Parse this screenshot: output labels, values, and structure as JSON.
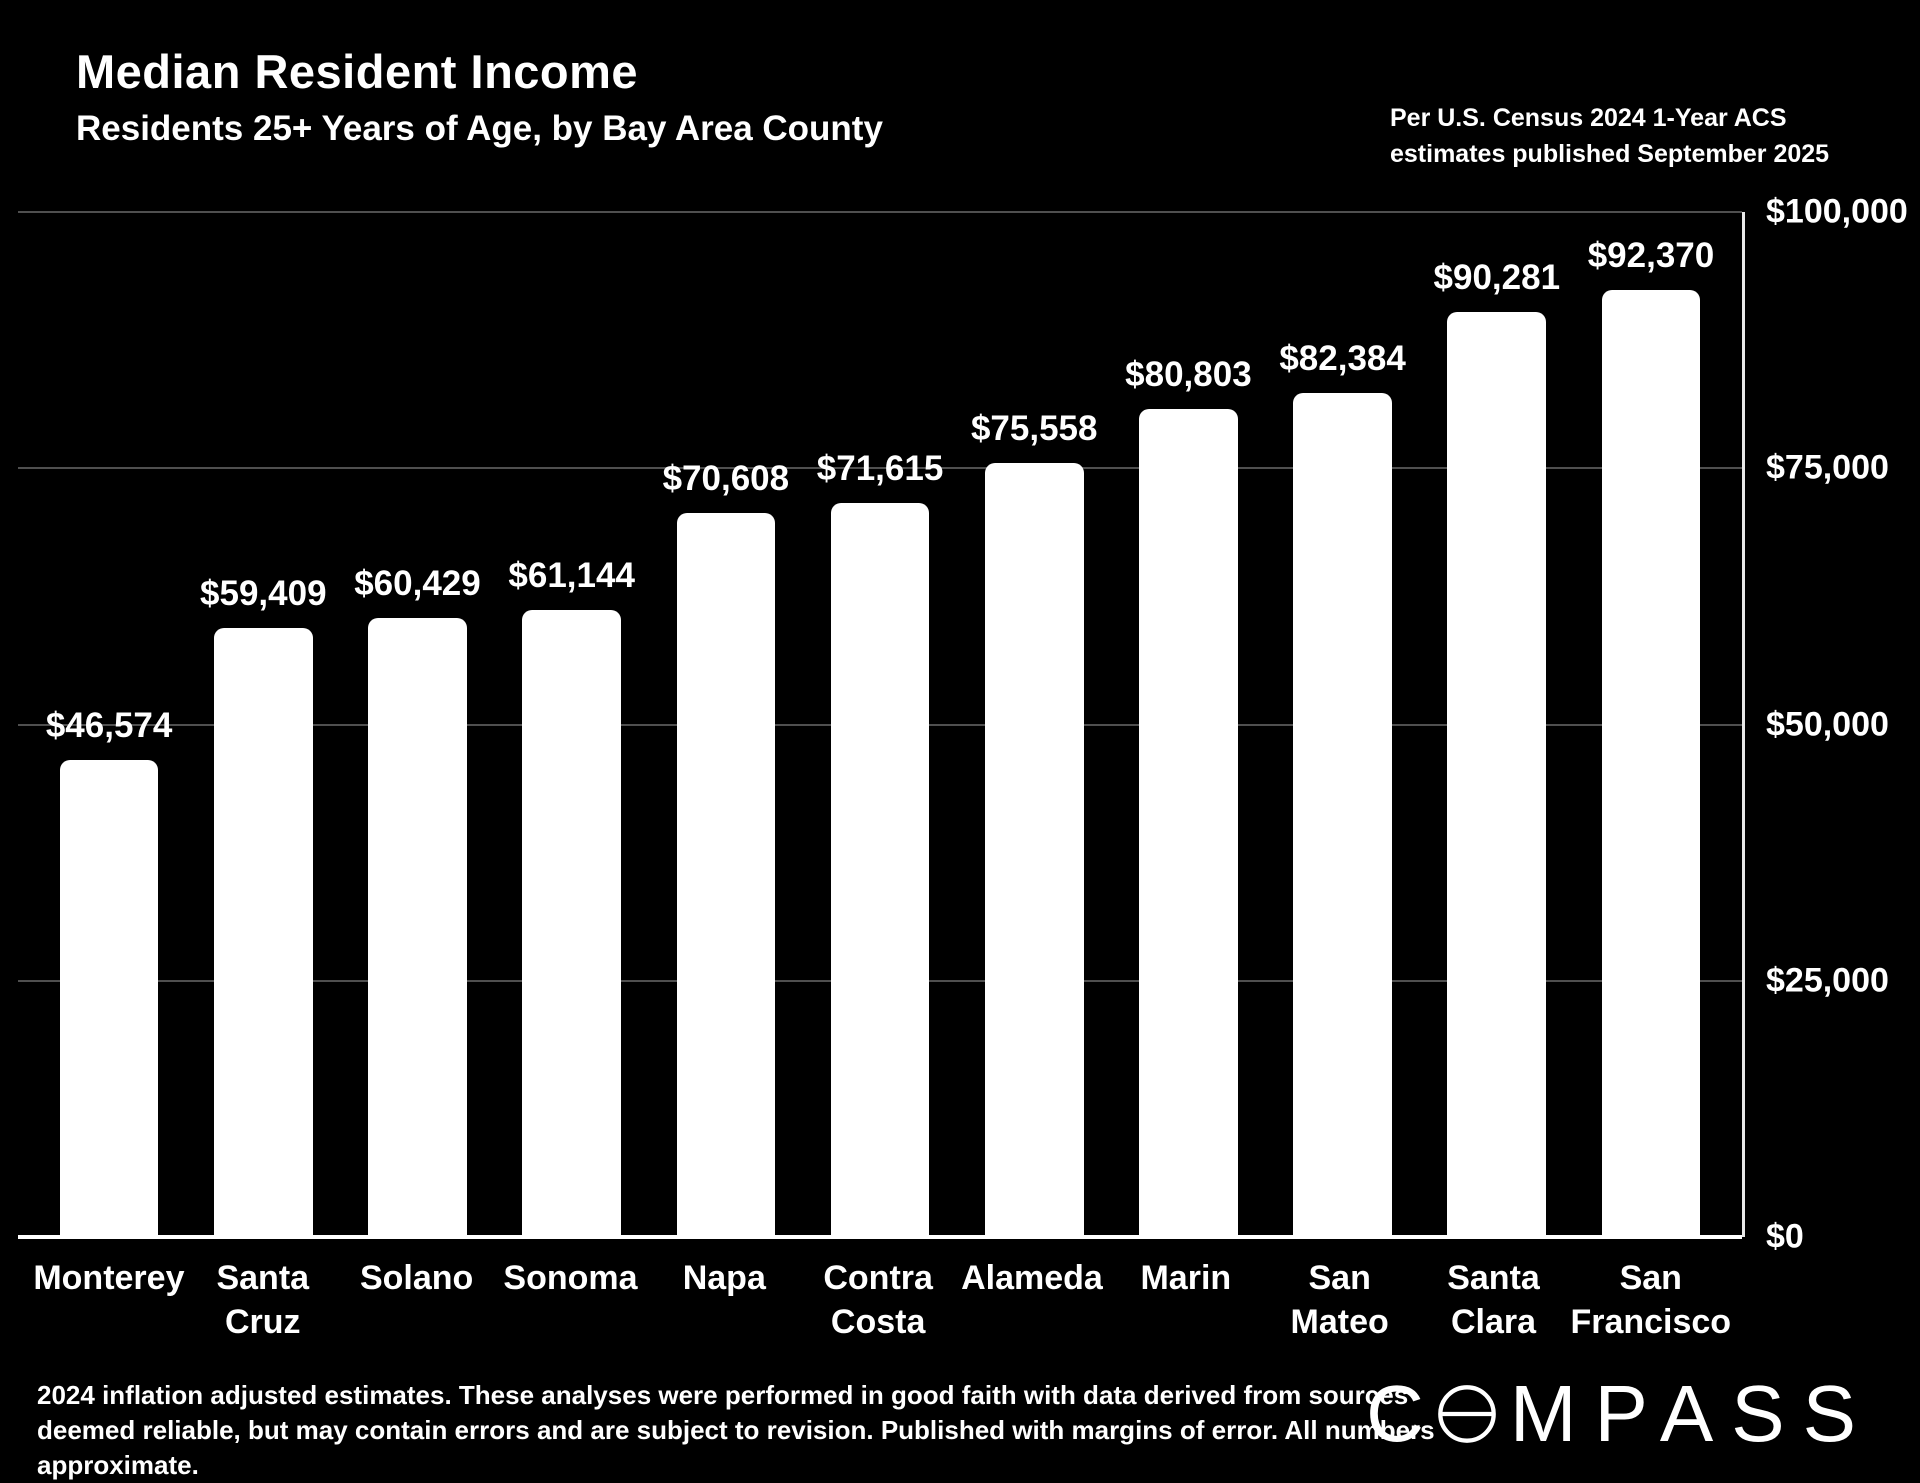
{
  "header": {
    "title": "Median Resident Income",
    "subtitle": "Residents 25+ Years of Age, by Bay Area County",
    "source_note": "Per U.S. Census 2024 1-Year ACS\nestimates published September 2025"
  },
  "chart_data": {
    "type": "bar",
    "title": "Median Resident Income",
    "subtitle": "Residents 25+ Years of Age, by Bay Area County",
    "categories": [
      "Monterey",
      "Santa Cruz",
      "Solano",
      "Sonoma",
      "Napa",
      "Contra Costa",
      "Alameda",
      "Marin",
      "San Mateo",
      "Santa Clara",
      "San Francisco"
    ],
    "values": [
      46574,
      59409,
      60429,
      61144,
      70608,
      71615,
      75558,
      80803,
      82384,
      90281,
      92370
    ],
    "value_labels": [
      "$46,574",
      "$59,409",
      "$60,429",
      "$61,144",
      "$70,608",
      "$71,615",
      "$75,558",
      "$80,803",
      "$82,384",
      "$90,281",
      "$92,370"
    ],
    "xlabel": "",
    "ylabel": "",
    "ylim": [
      0,
      100000
    ],
    "y_ticks": [
      0,
      25000,
      50000,
      75000,
      100000
    ],
    "y_tick_labels": [
      "$0",
      "$25,000",
      "$50,000",
      "$75,000",
      "$100,000"
    ],
    "grid": true,
    "legend": "none",
    "bar_color": "#ffffff",
    "background_color": "#000000",
    "text_color": "#ffffff",
    "gridline_color": "#4f4f4f"
  },
  "footer": {
    "disclaimer": "2024 inflation adjusted estimates. These analyses were performed in good faith with data derived from sources deemed reliable, but may contain errors and are subject to revision.  Published with margins of error. All numbers approximate.",
    "logo_prefix": "C",
    "logo_suffix": "MPASS"
  }
}
